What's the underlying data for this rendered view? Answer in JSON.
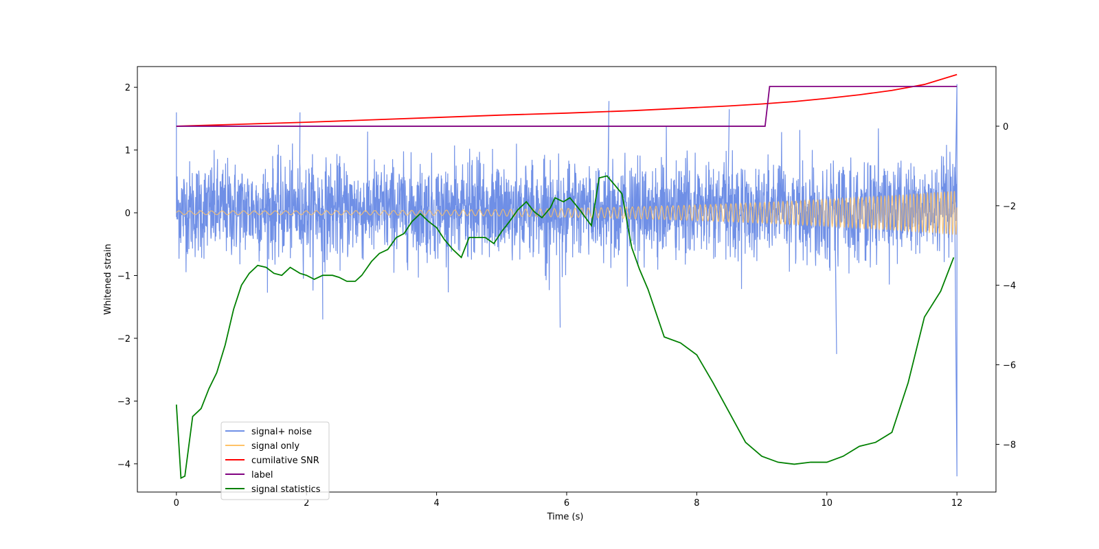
{
  "chart_data": {
    "type": "line",
    "title": "",
    "xlabel": "Time (s)",
    "ylabel": "Whitened strain",
    "y2label": "",
    "xlim": [
      -0.6,
      12.6
    ],
    "ylim": [
      -4.45,
      2.33
    ],
    "y2lim": [
      -9.2,
      1.5
    ],
    "x_ticks": [
      0,
      2,
      4,
      6,
      8,
      10,
      12
    ],
    "y_ticks": [
      -4,
      -3,
      -2,
      -1,
      0,
      1,
      2
    ],
    "y2_ticks": [
      -8,
      -6,
      -4,
      -2,
      0
    ],
    "grid": false,
    "legend_position": "lower-left",
    "series": [
      {
        "name": "signal+ noise",
        "axis": "left",
        "color": "#6f8fe6",
        "description_values": {
          "x_range": [
            0,
            12
          ],
          "typical_range": [
            -1.3,
            1.5
          ],
          "spikes": [
            {
              "x": 0.0,
              "y": 1.6
            },
            {
              "x": 1.9,
              "y": 1.6
            },
            {
              "x": 2.25,
              "y": -1.7
            },
            {
              "x": 5.9,
              "y": -1.83
            },
            {
              "x": 6.65,
              "y": 1.78
            },
            {
              "x": 8.5,
              "y": 1.65
            },
            {
              "x": 10.15,
              "y": -2.25
            },
            {
              "x": 12.0,
              "y": 2.05
            },
            {
              "x": 12.0,
              "y": -4.2
            }
          ]
        }
      },
      {
        "name": "signal only",
        "axis": "left",
        "color": "#ffc266",
        "description_values": {
          "x_range": [
            0,
            12
          ],
          "start_amplitude": 0.03,
          "end_amplitude": 0.35,
          "start_cycles_per_s": 6,
          "end_cycles_per_s": 20
        }
      },
      {
        "name": "cumilative SNR",
        "axis": "right",
        "color": "#ff0000",
        "x": [
          0,
          1,
          2,
          3,
          4,
          5,
          6,
          7,
          8,
          8.5,
          9,
          9.5,
          10,
          10.5,
          11,
          11.5,
          12
        ],
        "values": [
          0.0,
          0.05,
          0.1,
          0.16,
          0.22,
          0.28,
          0.33,
          0.39,
          0.47,
          0.51,
          0.56,
          0.62,
          0.7,
          0.79,
          0.9,
          1.05,
          1.3
        ]
      },
      {
        "name": "label",
        "axis": "right",
        "color": "#800080",
        "x": [
          0,
          9.05,
          9.12,
          12
        ],
        "values": [
          0,
          0,
          1,
          1
        ]
      },
      {
        "name": "signal statistics",
        "axis": "right",
        "color": "#008000",
        "x": [
          0,
          0.07,
          0.13,
          0.25,
          0.38,
          0.5,
          0.62,
          0.75,
          0.88,
          1.0,
          1.12,
          1.25,
          1.38,
          1.5,
          1.62,
          1.75,
          1.9,
          2.0,
          2.12,
          2.25,
          2.4,
          2.5,
          2.62,
          2.75,
          2.85,
          3.0,
          3.12,
          3.25,
          3.38,
          3.5,
          3.62,
          3.75,
          3.88,
          4.0,
          4.12,
          4.25,
          4.38,
          4.5,
          4.62,
          4.75,
          4.88,
          5.0,
          5.12,
          5.25,
          5.38,
          5.5,
          5.62,
          5.75,
          5.82,
          5.95,
          6.05,
          6.2,
          6.38,
          6.5,
          6.62,
          6.75,
          6.85,
          7.0,
          7.12,
          7.25,
          7.5,
          7.75,
          8.0,
          8.25,
          8.5,
          8.75,
          9.0,
          9.25,
          9.5,
          9.75,
          10.0,
          10.25,
          10.5,
          10.75,
          11.0,
          11.25,
          11.5,
          11.75,
          11.95
        ],
        "values": [
          -7.0,
          -8.85,
          -8.8,
          -7.3,
          -7.1,
          -6.6,
          -6.2,
          -5.5,
          -4.6,
          -4.0,
          -3.7,
          -3.5,
          -3.55,
          -3.7,
          -3.75,
          -3.55,
          -3.7,
          -3.75,
          -3.85,
          -3.75,
          -3.75,
          -3.8,
          -3.9,
          -3.9,
          -3.75,
          -3.4,
          -3.2,
          -3.1,
          -2.8,
          -2.7,
          -2.4,
          -2.2,
          -2.4,
          -2.55,
          -2.85,
          -3.1,
          -3.3,
          -2.8,
          -2.8,
          -2.8,
          -2.95,
          -2.65,
          -2.4,
          -2.1,
          -1.9,
          -2.15,
          -2.3,
          -2.05,
          -1.8,
          -1.9,
          -1.8,
          -2.1,
          -2.5,
          -1.3,
          -1.25,
          -1.5,
          -1.7,
          -3.05,
          -3.6,
          -4.1,
          -5.3,
          -5.45,
          -5.75,
          -6.45,
          -7.2,
          -7.95,
          -8.3,
          -8.45,
          -8.5,
          -8.45,
          -8.45,
          -8.3,
          -8.05,
          -7.95,
          -7.7,
          -6.45,
          -4.8,
          -4.15,
          -3.3
        ]
      }
    ]
  }
}
